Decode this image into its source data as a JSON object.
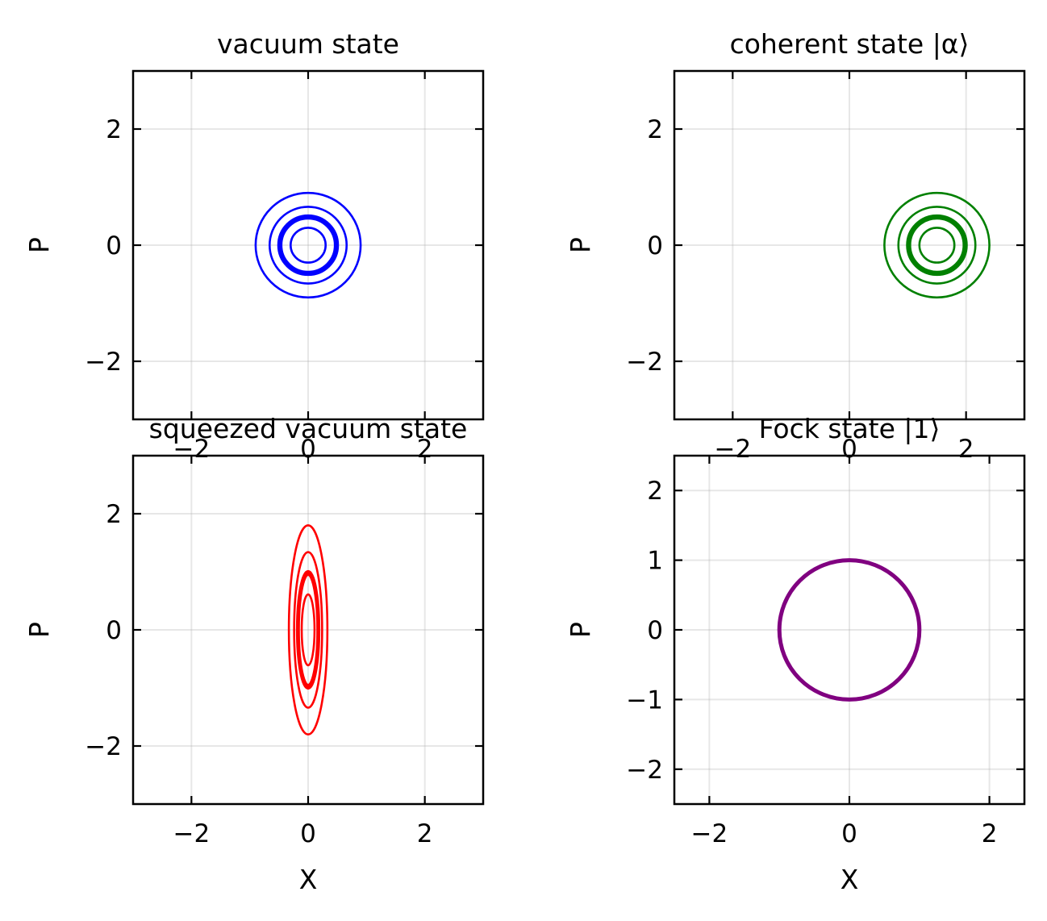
{
  "chart_data": [
    {
      "type": "contour",
      "title": "vacuum state",
      "xlabel": "",
      "ylabel": "P",
      "xlim": [
        -3,
        3
      ],
      "ylim": [
        -3,
        3
      ],
      "xticks": [
        -2,
        0,
        2
      ],
      "yticks": [
        -2,
        0,
        2
      ],
      "x_tick_labels": [
        "−2",
        "0",
        "2"
      ],
      "y_tick_labels": [
        "−2",
        "0",
        "2"
      ],
      "grid": true,
      "color": "#0000ff",
      "center": [
        0,
        0
      ],
      "contours": [
        {
          "rx": 0.3,
          "ry": 0.3,
          "thick": false
        },
        {
          "rx": 0.47,
          "ry": 0.47,
          "thick": true
        },
        {
          "rx": 0.5,
          "ry": 0.5,
          "thick": true
        },
        {
          "rx": 0.66,
          "ry": 0.66,
          "thick": false
        },
        {
          "rx": 0.9,
          "ry": 0.9,
          "thick": false
        }
      ]
    },
    {
      "type": "contour",
      "title": "coherent state |α⟩",
      "xlabel": "",
      "ylabel": "P",
      "xlim": [
        -3,
        3
      ],
      "ylim": [
        -3,
        3
      ],
      "xticks": [
        -2,
        0,
        2
      ],
      "yticks": [
        -2,
        0,
        2
      ],
      "x_tick_labels": [
        "−2",
        "0",
        "2"
      ],
      "y_tick_labels": [
        "−2",
        "0",
        "2"
      ],
      "grid": true,
      "color": "#008000",
      "center": [
        1.5,
        0
      ],
      "contours": [
        {
          "rx": 0.3,
          "ry": 0.3,
          "thick": false
        },
        {
          "rx": 0.47,
          "ry": 0.47,
          "thick": true
        },
        {
          "rx": 0.5,
          "ry": 0.5,
          "thick": true
        },
        {
          "rx": 0.66,
          "ry": 0.66,
          "thick": false
        },
        {
          "rx": 0.9,
          "ry": 0.9,
          "thick": false
        }
      ]
    },
    {
      "type": "contour",
      "title": "squeezed vacuum state",
      "xlabel": "X",
      "ylabel": "P",
      "xlim": [
        -3,
        3
      ],
      "ylim": [
        -3,
        3
      ],
      "xticks": [
        -2,
        0,
        2
      ],
      "yticks": [
        -2,
        0,
        2
      ],
      "x_tick_labels": [
        "−2",
        "0",
        "2"
      ],
      "y_tick_labels": [
        "−2",
        "0",
        "2"
      ],
      "grid": true,
      "color": "#ff0000",
      "center": [
        0,
        0
      ],
      "contours": [
        {
          "rx": 0.11,
          "ry": 0.61,
          "thick": false
        },
        {
          "rx": 0.17,
          "ry": 0.96,
          "thick": true
        },
        {
          "rx": 0.18,
          "ry": 1.0,
          "thick": true
        },
        {
          "rx": 0.24,
          "ry": 1.34,
          "thick": false
        },
        {
          "rx": 0.33,
          "ry": 1.8,
          "thick": false
        }
      ]
    },
    {
      "type": "contour",
      "title": "Fock state |1⟩",
      "xlabel": "X",
      "ylabel": "P",
      "xlim": [
        -2.5,
        2.5
      ],
      "ylim": [
        -2.5,
        2.5
      ],
      "xticks": [
        -2,
        0,
        2
      ],
      "yticks": [
        -2,
        -1,
        0,
        1,
        2
      ],
      "x_tick_labels": [
        "−2",
        "0",
        "2"
      ],
      "y_tick_labels": [
        "−2",
        "−1",
        "0",
        "1",
        "2"
      ],
      "grid": true,
      "color": "#800080",
      "center": [
        0,
        0
      ],
      "contours": [
        {
          "rx": 1.0,
          "ry": 1.0,
          "thick": true,
          "width": 5
        }
      ]
    }
  ]
}
